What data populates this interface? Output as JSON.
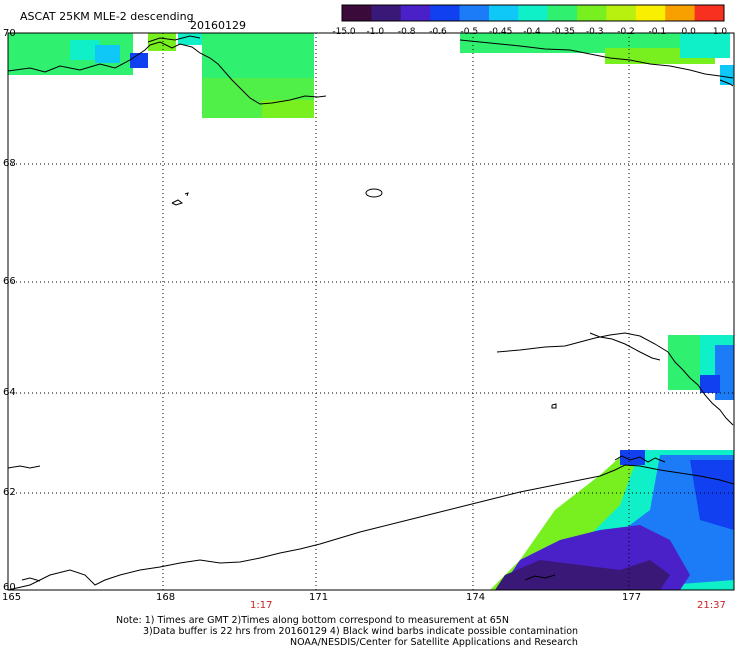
{
  "title": "ASCAT 25KM MLE-2 descending",
  "date": "20160129",
  "colorbar": {
    "labels": [
      "-15.0",
      "-1.0",
      "-0.8",
      "-0.6",
      "-0.5",
      "-0.45",
      "-0.4",
      "-0.35",
      "-0.3",
      "-0.2",
      "-0.1",
      "0.0",
      "1.0"
    ],
    "colors": [
      "#3a0a3a",
      "#3a1878",
      "#4a20c8",
      "#1040f0",
      "#1c7cf8",
      "#10c8f8",
      "#10f0c8",
      "#30f070",
      "#78f020",
      "#b8f010",
      "#f8f000",
      "#f8a000",
      "#f83020"
    ]
  },
  "lat_labels": [
    "70",
    "68",
    "66",
    "64",
    "62",
    "60"
  ],
  "lon_labels": [
    "165",
    "168",
    "171",
    "174",
    "177"
  ],
  "times": {
    "start": "1:17",
    "end": "21:37"
  },
  "notes": [
    "Note: 1) Times are GMT 2)Times along bottom correspond to measurement at 65N",
    "3)Data buffer is 22 hrs from 20160129 4) Black wind barbs indicate possible contamination",
    "NOAA/NESDIS/Center for Satellite Applications and Research"
  ]
}
